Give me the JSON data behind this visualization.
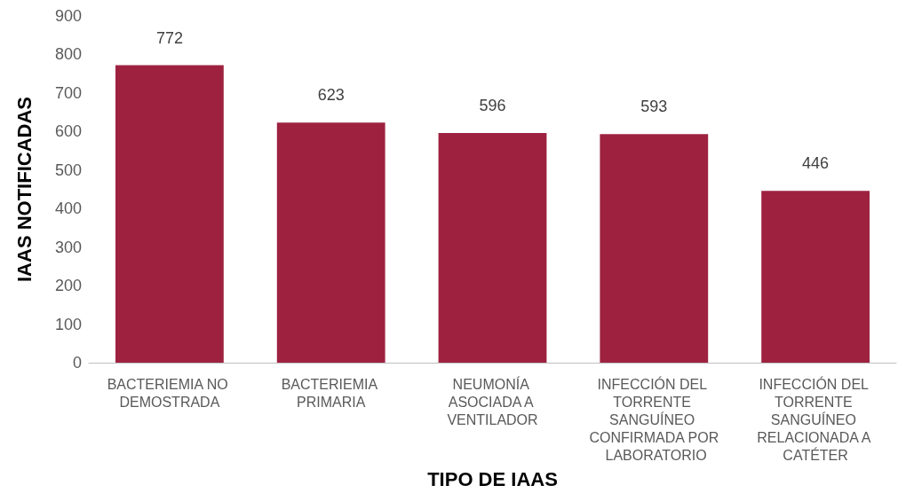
{
  "chart_data": {
    "type": "bar",
    "xlabel": "TIPO DE IAAS",
    "ylabel": "IAAS NOTIFICADAS",
    "categories": [
      "BACTERIEMIA NO DEMOSTRADA",
      "BACTERIEMIA PRIMARIA",
      "NEUMONÍA ASOCIADA A VENTILADOR",
      "INFECCIÓN DEL TORRENTE SANGUÍNEO CONFIRMADA POR LABORATORIO",
      "INFECCIÓN DEL TORRENTE SANGUÍNEO RELACIONADA A CATÉTER"
    ],
    "values": [
      772,
      623,
      596,
      593,
      446
    ],
    "color": "#9e2240",
    "ylim": [
      0,
      900
    ],
    "yticks": [
      0,
      100,
      200,
      300,
      400,
      500,
      600,
      700,
      800,
      900
    ],
    "grid": false,
    "data_labels": true
  }
}
